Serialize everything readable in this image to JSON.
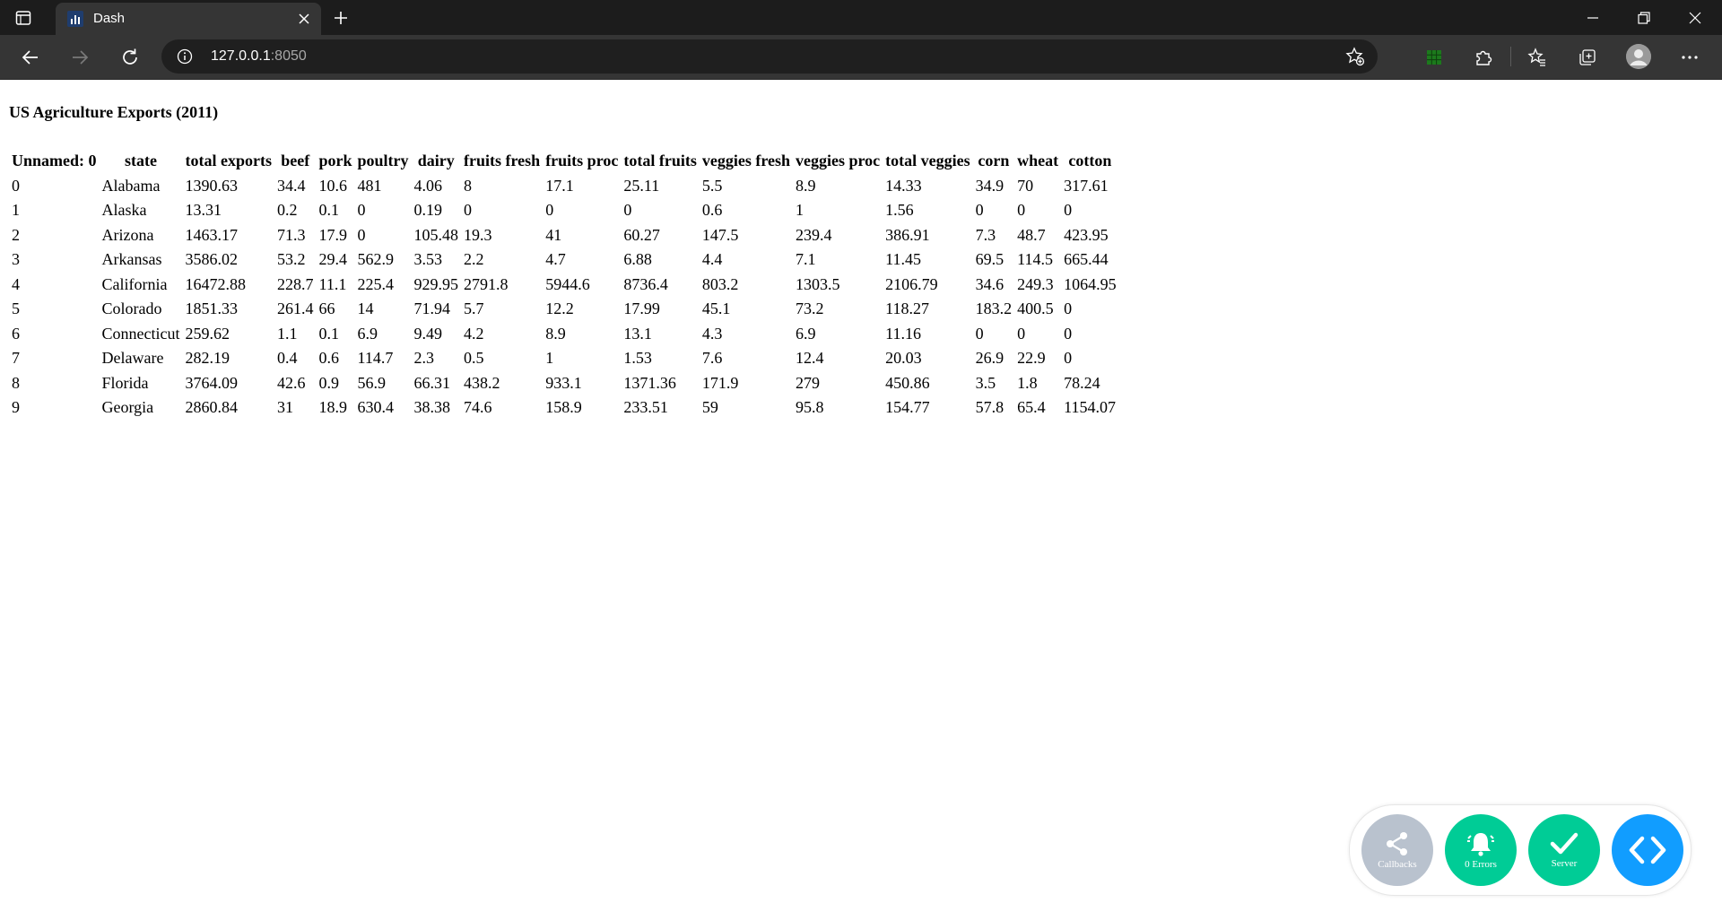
{
  "browser": {
    "tab": {
      "title": "Dash"
    },
    "address": {
      "host": "127.0.0.1",
      "port": ":8050"
    }
  },
  "page": {
    "title": "US Agriculture Exports (2011)",
    "table": {
      "columns": [
        "Unnamed: 0",
        "state",
        "total exports",
        "beef",
        "pork",
        "poultry",
        "dairy",
        "fruits fresh",
        "fruits proc",
        "total fruits",
        "veggies fresh",
        "veggies proc",
        "total veggies",
        "corn",
        "wheat",
        "cotton"
      ],
      "rows": [
        [
          "0",
          "Alabama",
          "1390.63",
          "34.4",
          "10.6",
          "481",
          "4.06",
          "8",
          "17.1",
          "25.11",
          "5.5",
          "8.9",
          "14.33",
          "34.9",
          "70",
          "317.61"
        ],
        [
          "1",
          "Alaska",
          "13.31",
          "0.2",
          "0.1",
          "0",
          "0.19",
          "0",
          "0",
          "0",
          "0.6",
          "1",
          "1.56",
          "0",
          "0",
          "0"
        ],
        [
          "2",
          "Arizona",
          "1463.17",
          "71.3",
          "17.9",
          "0",
          "105.48",
          "19.3",
          "41",
          "60.27",
          "147.5",
          "239.4",
          "386.91",
          "7.3",
          "48.7",
          "423.95"
        ],
        [
          "3",
          "Arkansas",
          "3586.02",
          "53.2",
          "29.4",
          "562.9",
          "3.53",
          "2.2",
          "4.7",
          "6.88",
          "4.4",
          "7.1",
          "11.45",
          "69.5",
          "114.5",
          "665.44"
        ],
        [
          "4",
          "California",
          "16472.88",
          "228.7",
          "11.1",
          "225.4",
          "929.95",
          "2791.8",
          "5944.6",
          "8736.4",
          "803.2",
          "1303.5",
          "2106.79",
          "34.6",
          "249.3",
          "1064.95"
        ],
        [
          "5",
          "Colorado",
          "1851.33",
          "261.4",
          "66",
          "14",
          "71.94",
          "5.7",
          "12.2",
          "17.99",
          "45.1",
          "73.2",
          "118.27",
          "183.2",
          "400.5",
          "0"
        ],
        [
          "6",
          "Connecticut",
          "259.62",
          "1.1",
          "0.1",
          "6.9",
          "9.49",
          "4.2",
          "8.9",
          "13.1",
          "4.3",
          "6.9",
          "11.16",
          "0",
          "0",
          "0"
        ],
        [
          "7",
          "Delaware",
          "282.19",
          "0.4",
          "0.6",
          "114.7",
          "2.3",
          "0.5",
          "1",
          "1.53",
          "7.6",
          "12.4",
          "20.03",
          "26.9",
          "22.9",
          "0"
        ],
        [
          "8",
          "Florida",
          "3764.09",
          "42.6",
          "0.9",
          "56.9",
          "66.31",
          "438.2",
          "933.1",
          "1371.36",
          "171.9",
          "279",
          "450.86",
          "3.5",
          "1.8",
          "78.24"
        ],
        [
          "9",
          "Georgia",
          "2860.84",
          "31",
          "18.9",
          "630.4",
          "38.38",
          "74.6",
          "158.9",
          "233.51",
          "59",
          "95.8",
          "154.77",
          "57.8",
          "65.4",
          "1154.07"
        ]
      ]
    }
  },
  "debug_menu": {
    "callbacks_label": "Callbacks",
    "errors_label": "0 Errors",
    "server_label": "Server",
    "colors": {
      "callbacks": "#b9c2ce",
      "errors": "#00cc96",
      "server": "#00cc96",
      "toggle": "#119dff"
    }
  }
}
